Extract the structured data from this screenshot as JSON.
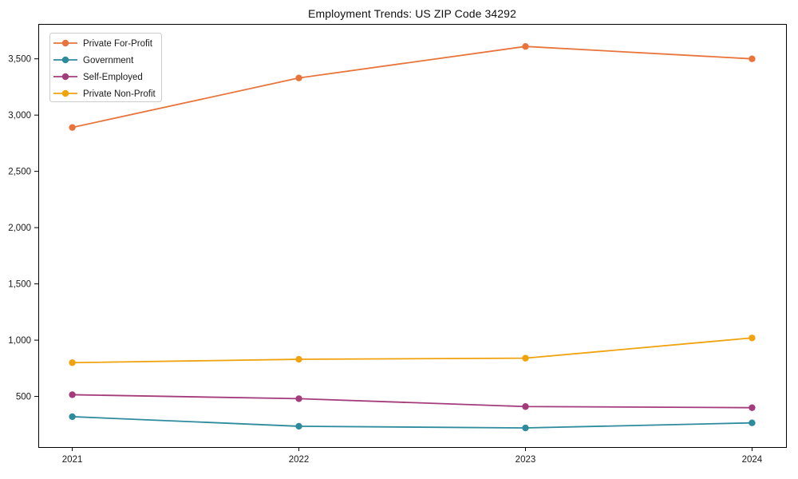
{
  "chart_data": {
    "type": "line",
    "title": "Employment Trends: US ZIP Code 34292",
    "xlabel": "",
    "ylabel": "",
    "x": [
      2021,
      2022,
      2023,
      2024
    ],
    "x_tick_labels": [
      "2021",
      "2022",
      "2023",
      "2024"
    ],
    "series": [
      {
        "name": "Private For-Profit",
        "color": "#e8743b",
        "values": [
          2890,
          3330,
          3610,
          3500
        ]
      },
      {
        "name": "Government",
        "color": "#2e8b9e",
        "values": [
          320,
          235,
          220,
          265
        ]
      },
      {
        "name": "Self-Employed",
        "color": "#a43c7c",
        "values": [
          515,
          480,
          410,
          400
        ]
      },
      {
        "name": "Private Non-Profit",
        "color": "#f0a30f",
        "values": [
          800,
          830,
          840,
          1020
        ]
      }
    ],
    "y_ticks": [
      500,
      1000,
      1500,
      2000,
      2500,
      3000,
      3500
    ],
    "y_tick_labels": [
      "500",
      "1,000",
      "1,500",
      "2,000",
      "2,500",
      "3,000",
      "3,500"
    ],
    "ylim": [
      50,
      3810
    ],
    "xlim": [
      2020.85,
      2024.15
    ],
    "grid": false,
    "legend_position": "upper left",
    "plot_bg_color": "#ffffff",
    "spine_color": "#000000",
    "legend_border_color": "#cccccc"
  }
}
